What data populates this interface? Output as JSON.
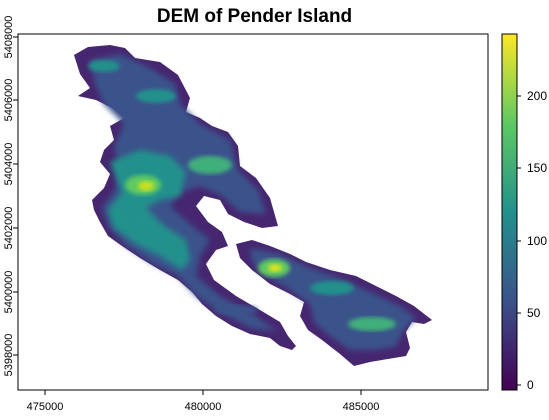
{
  "map": {
    "title": "DEM of Pender Island",
    "x_ticks": [
      "475000",
      "480000",
      "485000"
    ],
    "y_ticks": [
      "5398000",
      "5400000",
      "5402000",
      "5404000",
      "5406000",
      "5408000"
    ],
    "colorbar": {
      "ticks": [
        "0",
        "50",
        "100",
        "150",
        "200"
      ],
      "colormap": "viridis",
      "colors": [
        "#440154",
        "#3b528b",
        "#21918c",
        "#5ec962",
        "#fde725"
      ]
    },
    "colors": {
      "low": "#440154",
      "mid_low": "#3b528b",
      "mid": "#21918c",
      "mid_high": "#5ec962",
      "high": "#fde725"
    }
  }
}
